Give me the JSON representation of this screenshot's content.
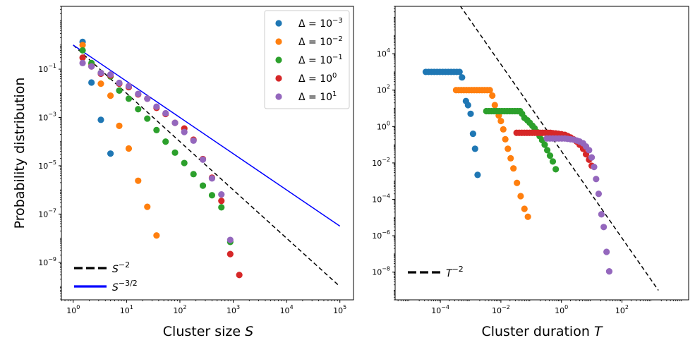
{
  "chart_data": [
    {
      "type": "scatter",
      "xscale": "log",
      "yscale": "log",
      "xlim": [
        0.6,
        180000
      ],
      "ylim": [
        2.8e-11,
        40
      ],
      "xlabel_pre": "Cluster size ",
      "xlabel_var": "S",
      "ylabel": "Probability distribution",
      "legend_placement": "top-right",
      "xticks": [
        {
          "v": 1,
          "base": "10",
          "exp": "0"
        },
        {
          "v": 10,
          "base": "10",
          "exp": "1"
        },
        {
          "v": 100,
          "base": "10",
          "exp": "2"
        },
        {
          "v": 1000,
          "base": "10",
          "exp": "3"
        },
        {
          "v": 10000,
          "base": "10",
          "exp": "4"
        },
        {
          "v": 100000,
          "base": "10",
          "exp": "5"
        }
      ],
      "yticks": [
        {
          "v": 0.1,
          "base": "10",
          "exp": "−1"
        },
        {
          "v": 0.001,
          "base": "10",
          "exp": "−3"
        },
        {
          "v": 1e-05,
          "base": "10",
          "exp": "−5"
        },
        {
          "v": 1e-07,
          "base": "10",
          "exp": "−7"
        },
        {
          "v": 1e-09,
          "base": "10",
          "exp": "−9"
        }
      ],
      "series": [
        {
          "name": "Δ = 10",
          "sup": "−3",
          "color": "#1f77b4",
          "points": [
            [
              1.5,
              1.35
            ],
            [
              2.2,
              0.028
            ],
            [
              3.3,
              0.0008
            ],
            [
              5,
              3.2e-05
            ]
          ]
        },
        {
          "name": "Δ = 10",
          "sup": "−2",
          "color": "#ff7f0e",
          "points": [
            [
              1.5,
              1.0
            ],
            [
              2.2,
              0.16
            ],
            [
              3.3,
              0.025
            ],
            [
              5,
              0.008
            ],
            [
              7.3,
              0.00045
            ],
            [
              11,
              5.2e-05
            ],
            [
              16.5,
              2.4e-06
            ],
            [
              24.5,
              2e-07
            ],
            [
              36.5,
              1.3e-08
            ]
          ]
        },
        {
          "name": "Δ = 10",
          "sup": "−1",
          "color": "#2ca02c",
          "points": [
            [
              1.5,
              0.6
            ],
            [
              2.2,
              0.18
            ],
            [
              3.3,
              0.07
            ],
            [
              5,
              0.05
            ],
            [
              7.3,
              0.013
            ],
            [
              11,
              0.006
            ],
            [
              16.5,
              0.0022
            ],
            [
              24.5,
              0.0009
            ],
            [
              36.5,
              0.0003
            ],
            [
              54,
              0.0001
            ],
            [
              81,
              3.5e-05
            ],
            [
              121,
              1.3e-05
            ],
            [
              180,
              4.5e-06
            ],
            [
              270,
              1.5e-06
            ],
            [
              400,
              6e-07
            ],
            [
              600,
              1.9e-07
            ],
            [
              880,
              7e-09
            ]
          ]
        },
        {
          "name": "Δ = 10",
          "sup": "0",
          "color": "#d62728",
          "points": [
            [
              1.5,
              0.3
            ],
            [
              2.2,
              0.13
            ],
            [
              3.3,
              0.065
            ],
            [
              5,
              0.055
            ],
            [
              7.3,
              0.025
            ],
            [
              11,
              0.018
            ],
            [
              16.5,
              0.009
            ],
            [
              24.5,
              0.006
            ],
            [
              36.5,
              0.0025
            ],
            [
              54,
              0.0014
            ],
            [
              81,
              0.0006
            ],
            [
              121,
              0.00035
            ],
            [
              180,
              0.00012
            ],
            [
              270,
              1.9e-05
            ],
            [
              400,
              3.2e-06
            ],
            [
              600,
              3.5e-07
            ],
            [
              880,
              2.2e-09
            ],
            [
              1300,
              3e-10
            ]
          ]
        },
        {
          "name": "Δ = 10",
          "sup": "1",
          "color": "#9467bd",
          "points": [
            [
              1.5,
              0.18
            ],
            [
              2.2,
              0.13
            ],
            [
              3.3,
              0.07
            ],
            [
              5,
              0.06
            ],
            [
              7.3,
              0.027
            ],
            [
              11,
              0.02
            ],
            [
              16.5,
              0.0095
            ],
            [
              24.5,
              0.006
            ],
            [
              36.5,
              0.0028
            ],
            [
              54,
              0.0015
            ],
            [
              81,
              0.0006
            ],
            [
              121,
              0.00025
            ],
            [
              180,
              0.00011
            ],
            [
              270,
              1.8e-05
            ],
            [
              400,
              3e-06
            ],
            [
              600,
              6.5e-07
            ],
            [
              880,
              8.5e-09
            ]
          ]
        }
      ],
      "reference_lines": [
        {
          "label": "S",
          "sup": "−2",
          "color": "#000000",
          "style": "dashed",
          "x": [
            1,
            100000
          ],
          "y": [
            1.0,
            1e-10
          ]
        },
        {
          "label": "S",
          "sup": "−3/2",
          "color": "#0000ff",
          "style": "solid",
          "x": [
            1,
            100000
          ],
          "y": [
            1.0,
            3.16e-08
          ]
        }
      ]
    },
    {
      "type": "scatter",
      "xscale": "log",
      "yscale": "log",
      "xlim": [
        3.2e-06,
        16000.0
      ],
      "ylim": [
        3e-10,
        4000000.0
      ],
      "xlabel_pre": "Cluster duration ",
      "xlabel_var": "T",
      "legend_placement": "bottom-left",
      "xticks": [
        {
          "v": 0.0001,
          "base": "10",
          "exp": "−4"
        },
        {
          "v": 0.01,
          "base": "10",
          "exp": "−2"
        },
        {
          "v": 1,
          "base": "10",
          "exp": "0"
        },
        {
          "v": 100,
          "base": "10",
          "exp": "2"
        }
      ],
      "yticks": [
        {
          "v": 10000,
          "base": "10",
          "exp": "4"
        },
        {
          "v": 100,
          "base": "10",
          "exp": "2"
        },
        {
          "v": 1,
          "base": "10",
          "exp": "0"
        },
        {
          "v": 0.01,
          "base": "10",
          "exp": "−2"
        },
        {
          "v": 0.0001,
          "base": "10",
          "exp": "−4"
        },
        {
          "v": 1e-06,
          "base": "10",
          "exp": "−6"
        },
        {
          "v": 1e-08,
          "base": "10",
          "exp": "−8"
        }
      ],
      "series": [
        {
          "color": "#1f77b4",
          "plateau": {
            "x0": 3.3e-05,
            "x1": 0.00043,
            "n": 13,
            "y": 1000
          },
          "points": [
            [
              0.00052,
              500
            ],
            [
              0.0007,
              25
            ],
            [
              0.00082,
              15
            ],
            [
              0.001,
              5
            ],
            [
              0.0012,
              0.4
            ],
            [
              0.0014,
              0.06
            ],
            [
              0.0017,
              0.0022
            ]
          ]
        },
        {
          "color": "#ff7f0e",
          "plateau": {
            "x0": 0.00033,
            "x1": 0.0043,
            "n": 14,
            "y": 100
          },
          "points": [
            [
              0.0052,
              50
            ],
            [
              0.0063,
              15
            ],
            [
              0.0072,
              7
            ],
            [
              0.0085,
              4
            ],
            [
              0.01,
              2
            ],
            [
              0.012,
              0.7
            ],
            [
              0.014,
              0.2
            ],
            [
              0.017,
              0.06
            ],
            [
              0.021,
              0.018
            ],
            [
              0.026,
              0.005
            ],
            [
              0.034,
              0.0008
            ],
            [
              0.045,
              0.00015
            ],
            [
              0.06,
              3e-05
            ],
            [
              0.078,
              1.1e-05
            ]
          ]
        },
        {
          "color": "#2ca02c",
          "plateau": {
            "x0": 0.0033,
            "x1": 0.043,
            "n": 14,
            "y": 7
          },
          "points": [
            [
              0.05,
              5
            ],
            [
              0.06,
              3
            ],
            [
              0.075,
              2.2
            ],
            [
              0.09,
              1.6
            ],
            [
              0.11,
              1.1
            ],
            [
              0.13,
              0.8
            ],
            [
              0.155,
              0.5
            ],
            [
              0.19,
              0.3
            ],
            [
              0.23,
              0.18
            ],
            [
              0.28,
              0.1
            ],
            [
              0.34,
              0.05
            ],
            [
              0.42,
              0.025
            ],
            [
              0.52,
              0.012
            ],
            [
              0.65,
              0.0045
            ]
          ]
        },
        {
          "color": "#d62728",
          "plateau": {
            "x0": 0.033,
            "x1": 0.43,
            "n": 14,
            "y": 0.45
          },
          "points": [
            [
              0.52,
              0.43
            ],
            [
              0.65,
              0.42
            ],
            [
              0.8,
              0.4
            ],
            [
              1.0,
              0.38
            ],
            [
              1.3,
              0.35
            ],
            [
              1.6,
              0.3
            ],
            [
              2.0,
              0.25
            ],
            [
              2.5,
              0.2
            ],
            [
              3.2,
              0.15
            ],
            [
              4.0,
              0.1
            ],
            [
              5.2,
              0.06
            ],
            [
              6.5,
              0.03
            ],
            [
              8.2,
              0.015
            ],
            [
              10,
              0.007
            ]
          ]
        },
        {
          "color": "#9467bd",
          "plateau": {
            "x0": 0.33,
            "x1": 1.3,
            "n": 7,
            "y": 0.22
          },
          "points": [
            [
              1.6,
              0.21
            ],
            [
              2.0,
              0.2
            ],
            [
              2.5,
              0.19
            ],
            [
              3.2,
              0.17
            ],
            [
              4.0,
              0.15
            ],
            [
              5.2,
              0.12
            ],
            [
              6.5,
              0.08
            ],
            [
              8.2,
              0.05
            ],
            [
              10,
              0.02
            ],
            [
              12,
              0.006
            ],
            [
              14,
              0.0013
            ],
            [
              17,
              0.0002
            ],
            [
              21,
              1.5e-05
            ],
            [
              25,
              3e-06
            ],
            [
              31,
              1.3e-07
            ],
            [
              38,
              1.1e-08
            ]
          ]
        }
      ],
      "reference_lines": [
        {
          "label": "T",
          "sup": "−2",
          "color": "#000000",
          "style": "dashed",
          "x": [
            0.00033,
            1600
          ],
          "y": [
            9000000.0,
            1e-09
          ]
        }
      ]
    }
  ]
}
